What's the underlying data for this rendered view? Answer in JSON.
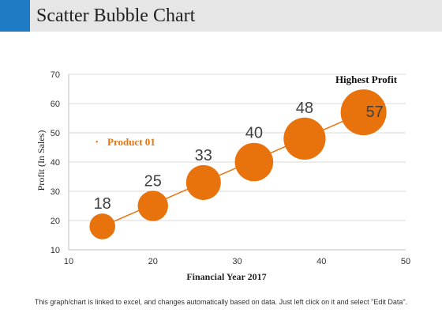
{
  "header": {
    "title": "Scatter Bubble Chart",
    "accent_color": "#1f7bc4",
    "bar_color": "#e6e6e6"
  },
  "footer": {
    "note": "This graph/chart is linked to excel, and changes automatically based on data. Just left click on it and select \"Edit Data\"."
  },
  "chart_data": {
    "type": "scatter",
    "xlabel": "Financial Year  2017",
    "ylabel": "Profit  (In Sales)",
    "xlim": [
      10,
      50
    ],
    "ylim": [
      10,
      70
    ],
    "x_ticks": [
      10,
      20,
      30,
      40,
      50
    ],
    "y_ticks": [
      10,
      20,
      30,
      40,
      50,
      60,
      70
    ],
    "grid": true,
    "color": "#e8730c",
    "series": [
      {
        "name": "Product 01",
        "points": [
          {
            "x": 14,
            "y": 18,
            "size": 18,
            "label": "18"
          },
          {
            "x": 20,
            "y": 25,
            "size": 25,
            "label": "25"
          },
          {
            "x": 26,
            "y": 33,
            "size": 33,
            "label": "33"
          },
          {
            "x": 32,
            "y": 40,
            "size": 40,
            "label": "40"
          },
          {
            "x": 38,
            "y": 48,
            "size": 48,
            "label": "48"
          },
          {
            "x": 45,
            "y": 57,
            "size": 57,
            "label": "57"
          }
        ]
      }
    ],
    "legend": {
      "position": "left",
      "label": "Product 01"
    },
    "annotation": "Highest Profit"
  }
}
